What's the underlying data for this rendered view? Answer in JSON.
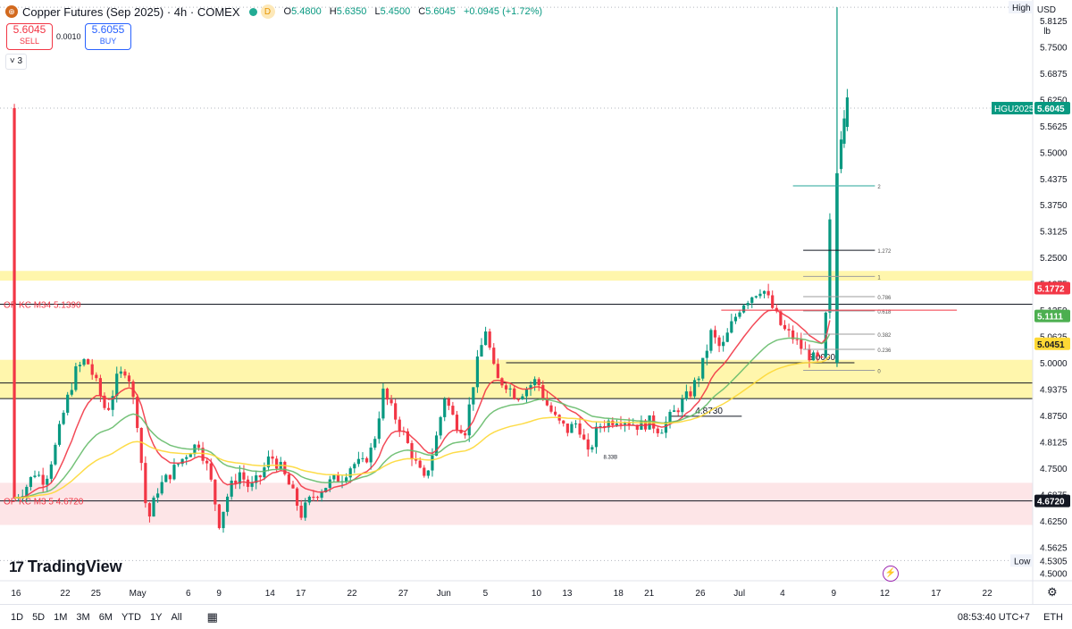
{
  "header": {
    "title": "Copper Futures (Sep 2025) · 4h · COMEX",
    "d_badge": "D",
    "ohlc": {
      "o": "5.4800",
      "h": "5.6350",
      "l": "5.4500",
      "c": "5.6045",
      "change": "+0.0945 (+1.72%)"
    },
    "o_label": "O",
    "h_label": "H",
    "l_label": "L",
    "c_label": "C"
  },
  "trade": {
    "sell_price": "5.6045",
    "sell_label": "SELL",
    "buy_price": "5.6055",
    "buy_label": "BUY",
    "spread": "0.0010"
  },
  "indicators_toggle": "3",
  "axis": {
    "currency": "USD",
    "unit": "lb"
  },
  "colors": {
    "up": "#089981",
    "down": "#f23645",
    "ema_red": "#f23645",
    "ema_green": "#66bb6a",
    "ema_yellow": "#fdd835",
    "zone_yellow": "#fff59d",
    "zone_red": "#fde2e4"
  },
  "chart_data": {
    "type": "candlestick",
    "interval": "4h",
    "ylim": [
      4.4825,
      5.8485
    ],
    "y_ticks": [
      "5.8125",
      "5.7500",
      "5.6875",
      "5.6250",
      "5.5625",
      "5.5000",
      "5.4375",
      "5.3750",
      "5.3125",
      "5.2500",
      "5.1875",
      "5.1250",
      "5.0625",
      "5.0000",
      "4.9375",
      "4.8750",
      "4.8125",
      "4.7500",
      "4.6875",
      "4.6250",
      "4.5625",
      "4.5000"
    ],
    "x_ticks": [
      {
        "label": "16",
        "x": 0.2
      },
      {
        "label": "22",
        "x": 5
      },
      {
        "label": "25",
        "x": 8
      },
      {
        "label": "May",
        "x": 12
      },
      {
        "label": "6",
        "x": 17
      },
      {
        "label": "9",
        "x": 20
      },
      {
        "label": "14",
        "x": 25
      },
      {
        "label": "17",
        "x": 28
      },
      {
        "label": "22",
        "x": 33
      },
      {
        "label": "27",
        "x": 38
      },
      {
        "label": "Jun",
        "x": 42
      },
      {
        "label": "5",
        "x": 46
      },
      {
        "label": "10",
        "x": 51
      },
      {
        "label": "13",
        "x": 54
      },
      {
        "label": "18",
        "x": 59
      },
      {
        "label": "21",
        "x": 62
      },
      {
        "label": "26",
        "x": 67
      },
      {
        "label": "Jul",
        "x": 71
      },
      {
        "label": "4",
        "x": 75
      },
      {
        "label": "9",
        "x": 80
      },
      {
        "label": "12",
        "x": 85
      },
      {
        "label": "17",
        "x": 90
      },
      {
        "label": "22",
        "x": 95
      }
    ],
    "x_range": [
      -1.4,
      99.4
    ],
    "candle_anchors": [
      [
        0,
        4.68
      ],
      [
        1,
        4.7
      ],
      [
        2,
        4.74
      ],
      [
        3,
        4.72
      ],
      [
        4,
        4.8
      ],
      [
        5,
        4.9
      ],
      [
        6,
        4.98
      ],
      [
        7,
        5.01
      ],
      [
        8,
        4.95
      ],
      [
        9,
        4.88
      ],
      [
        10,
        4.96
      ],
      [
        11,
        4.99
      ],
      [
        12,
        4.86
      ],
      [
        13,
        4.62
      ],
      [
        14,
        4.7
      ],
      [
        15,
        4.73
      ],
      [
        16,
        4.76
      ],
      [
        17,
        4.79
      ],
      [
        18,
        4.81
      ],
      [
        19,
        4.74
      ],
      [
        20,
        4.62
      ],
      [
        21,
        4.7
      ],
      [
        22,
        4.74
      ],
      [
        23,
        4.7
      ],
      [
        24,
        4.73
      ],
      [
        25,
        4.78
      ],
      [
        26,
        4.75
      ],
      [
        27,
        4.7
      ],
      [
        28,
        4.64
      ],
      [
        29,
        4.68
      ],
      [
        30,
        4.7
      ],
      [
        31,
        4.72
      ],
      [
        32,
        4.73
      ],
      [
        33,
        4.76
      ],
      [
        34,
        4.76
      ],
      [
        35,
        4.8
      ],
      [
        36,
        4.93
      ],
      [
        37,
        4.88
      ],
      [
        38,
        4.83
      ],
      [
        39,
        4.77
      ],
      [
        40,
        4.72
      ],
      [
        41,
        4.8
      ],
      [
        42,
        4.92
      ],
      [
        43,
        4.86
      ],
      [
        44,
        4.84
      ],
      [
        45,
        4.98
      ],
      [
        46,
        5.08
      ],
      [
        47,
        4.96
      ],
      [
        48,
        4.95
      ],
      [
        49,
        4.92
      ],
      [
        50,
        4.94
      ],
      [
        51,
        4.96
      ],
      [
        52,
        4.9
      ],
      [
        53,
        4.86
      ],
      [
        54,
        4.84
      ],
      [
        55,
        4.86
      ],
      [
        56,
        4.78
      ],
      [
        57,
        4.85
      ],
      [
        58,
        4.86
      ],
      [
        59,
        4.87
      ],
      [
        60,
        4.86
      ],
      [
        61,
        4.85
      ],
      [
        62,
        4.86
      ],
      [
        63,
        4.84
      ],
      [
        64,
        4.87
      ],
      [
        65,
        4.9
      ],
      [
        66,
        4.93
      ],
      [
        67,
        4.98
      ],
      [
        68,
        5.07
      ],
      [
        69,
        5.03
      ],
      [
        70,
        5.09
      ],
      [
        71,
        5.14
      ],
      [
        72,
        5.16
      ],
      [
        73,
        5.18
      ],
      [
        74,
        5.13
      ],
      [
        75,
        5.08
      ],
      [
        76,
        5.06
      ],
      [
        77,
        5.03
      ],
      [
        78,
        5.01
      ],
      [
        79,
        5.0
      ],
      [
        80,
        5.55
      ],
      [
        80.6,
        5.6045
      ]
    ],
    "spike": {
      "x": 80.3,
      "high": 5.844,
      "low": 4.99,
      "open": 5.0,
      "close": 5.45
    },
    "zones": [
      {
        "from": 5.195,
        "to": 5.218,
        "color": "yellow"
      },
      {
        "from": 4.915,
        "to": 5.007,
        "color": "yellow"
      },
      {
        "from": 4.615,
        "to": 4.715,
        "color": "red"
      }
    ],
    "lines": [
      {
        "label": "OP KC M34 5.1390",
        "value": 5.139,
        "color": "#131722"
      },
      {
        "label": "OP KC M3 5 4.6720",
        "value": 4.672,
        "color": "#131722"
      },
      {
        "label": "5.0000",
        "value": 5.0,
        "color": "#131722"
      },
      {
        "label": "4.8730",
        "value": 4.873,
        "color": "#131722"
      }
    ],
    "fib_levels": [
      {
        "label": "2",
        "value": 5.42
      },
      {
        "label": "1.272",
        "value": 5.267
      },
      {
        "label": "1",
        "value": 5.205
      },
      {
        "label": "0.786",
        "value": 5.157
      },
      {
        "label": "0.618",
        "value": 5.123
      },
      {
        "label": "0.382",
        "value": 5.068
      },
      {
        "label": "0.236",
        "value": 5.032
      },
      {
        "label": "0",
        "value": 4.982
      }
    ],
    "price_tags": [
      {
        "label": "HGU2025",
        "value": "5.6045",
        "y": 5.6045,
        "color": "#089981"
      },
      {
        "label": "",
        "value": "5.1772",
        "y": 5.1772,
        "color": "#f23645"
      },
      {
        "label": "",
        "value": "5.1111",
        "y": 5.1111,
        "color": "#4caf50"
      },
      {
        "label": "",
        "value": "5.0451",
        "y": 5.0451,
        "color": "#fdd835"
      },
      {
        "label": "",
        "value": "4.6720",
        "y": 4.672,
        "color": "#131722"
      }
    ],
    "high_label": "High",
    "low_label": "Low",
    "low_value": "4.5305",
    "small_label": "8.33B"
  },
  "logo": "TradingView",
  "bottom": {
    "ranges": [
      "1D",
      "5D",
      "1M",
      "3M",
      "6M",
      "YTD",
      "1Y",
      "All"
    ],
    "time": "08:53:40 UTC+7",
    "session": "ETH"
  }
}
